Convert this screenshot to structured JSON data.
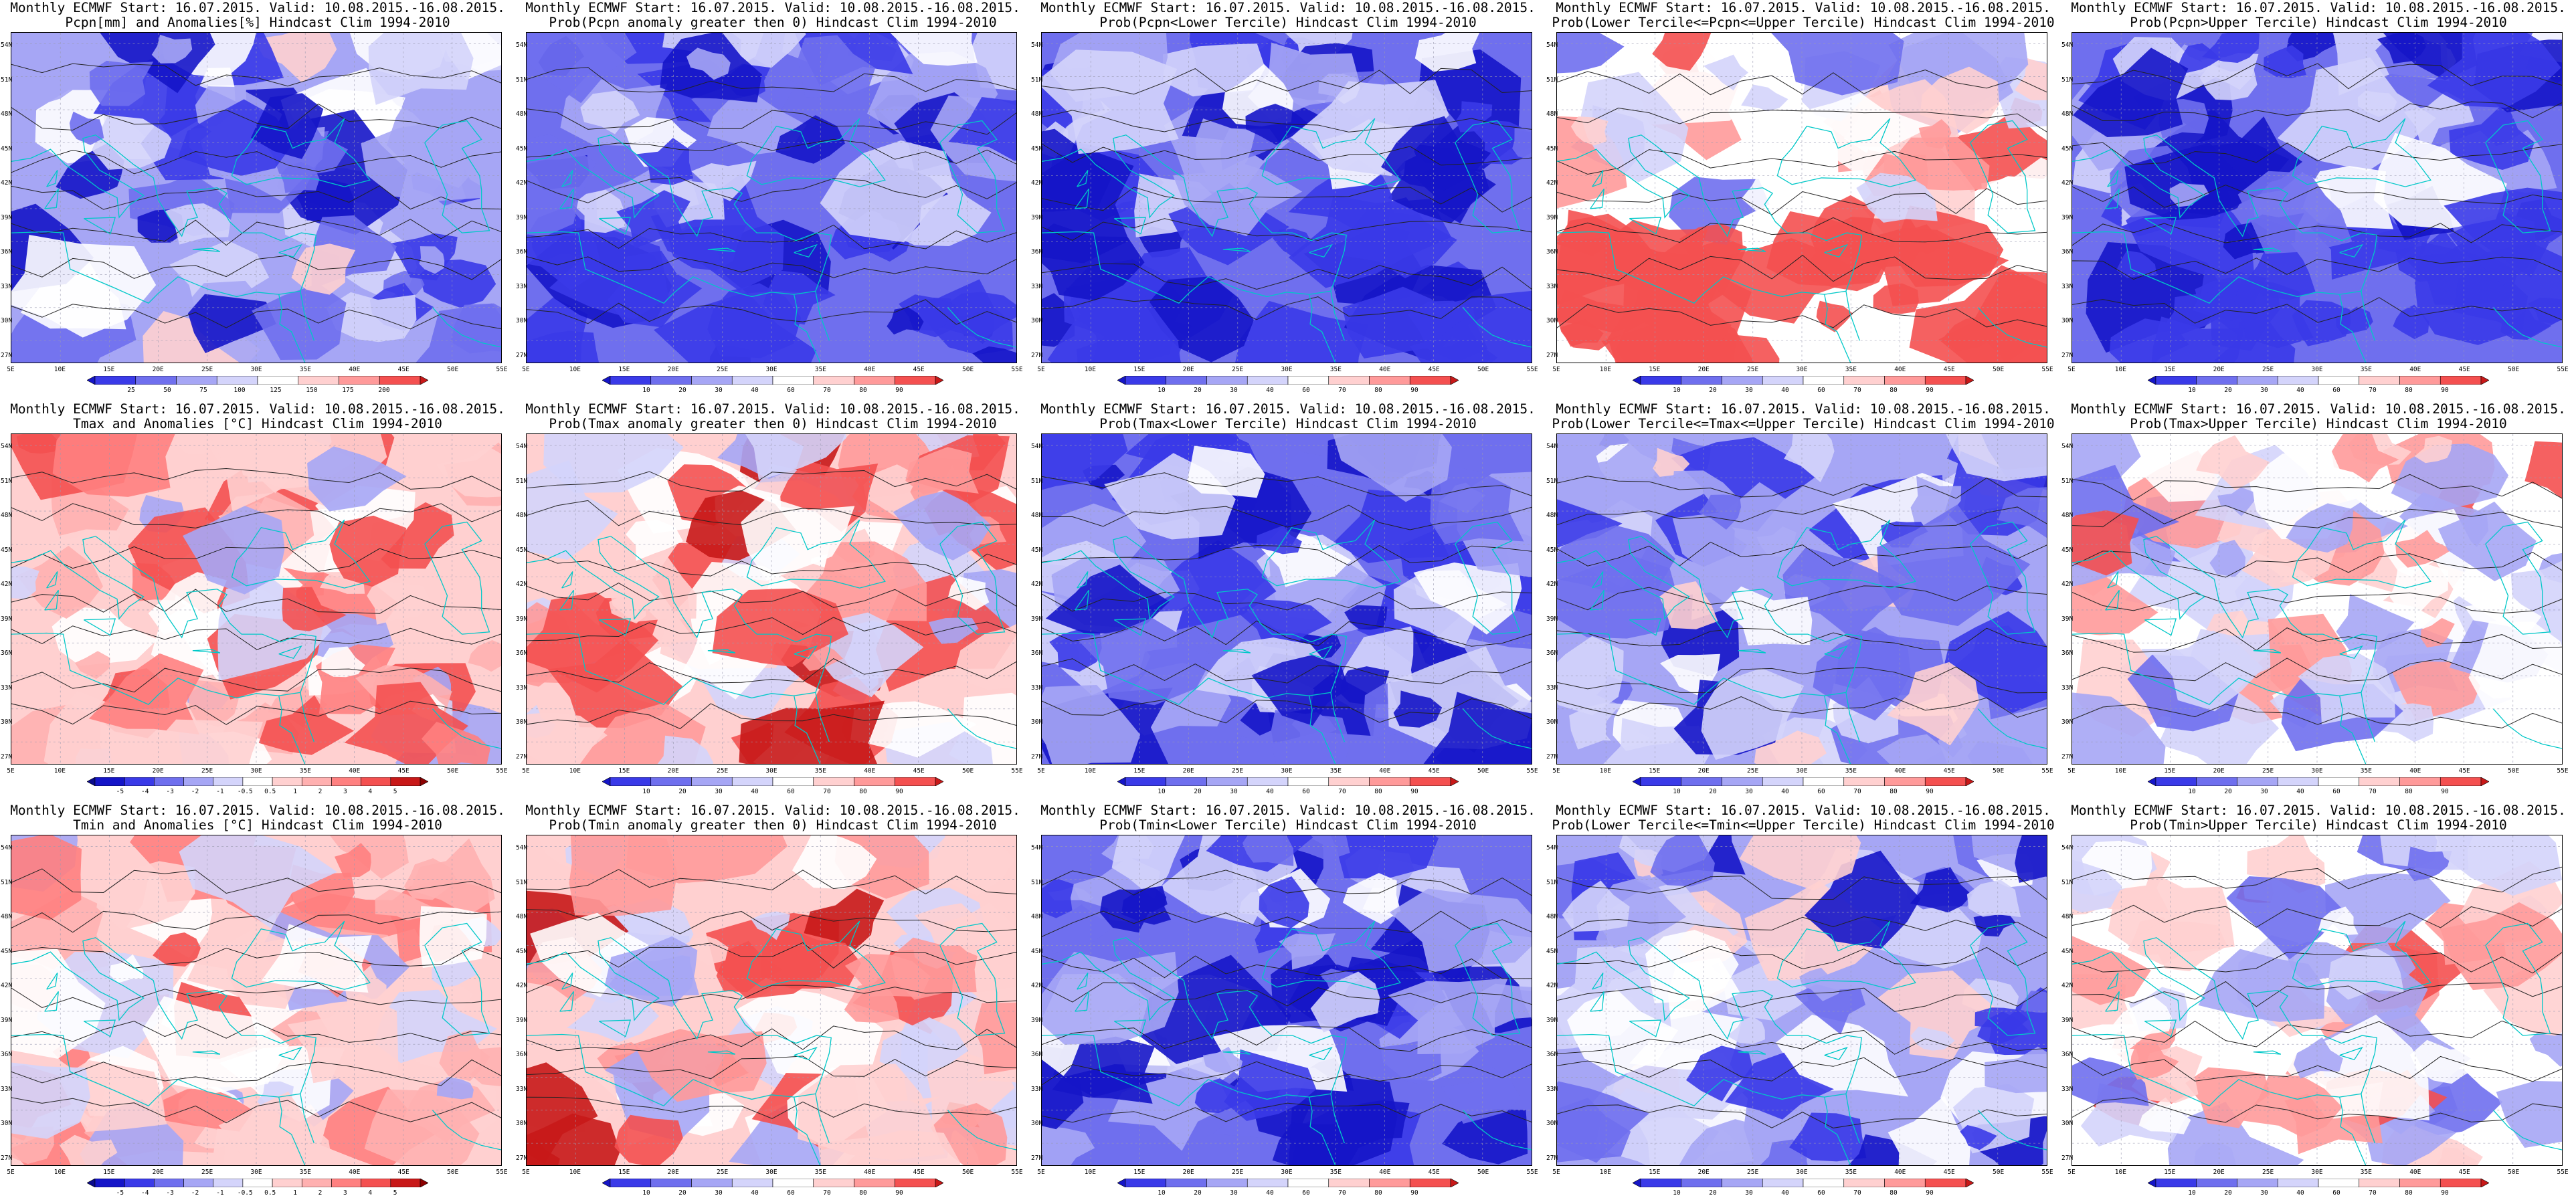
{
  "header_line": "Monthly ECMWF Start: 16.07.2015. Valid: 10.08.2015.-16.08.2015.",
  "lat_labels": [
    "54N",
    "51N",
    "48N",
    "45N",
    "42N",
    "39N",
    "36N",
    "33N",
    "30N",
    "27N"
  ],
  "lon_labels": [
    "5E",
    "10E",
    "15E",
    "20E",
    "25E",
    "30E",
    "35E",
    "40E",
    "45E",
    "50E",
    "55E"
  ],
  "colorbars": {
    "pcpn_anom": {
      "labels": [
        "25",
        "50",
        "75",
        "100",
        "125",
        "150",
        "175",
        "200"
      ],
      "colors": [
        "#1515c8",
        "#3a3ae8",
        "#6f6fee",
        "#a6a6f5",
        "#d4d4fb",
        "#ffffff",
        "#ffd0d0",
        "#ff9a9a",
        "#f45050",
        "#c81818"
      ]
    },
    "temp_anom": {
      "labels": [
        "-5",
        "-4",
        "-3",
        "-2",
        "-1",
        "-0.5",
        "0.5",
        "1",
        "2",
        "3",
        "4",
        "5"
      ],
      "colors": [
        "#0b0b8c",
        "#1515c8",
        "#3a3ae8",
        "#6f6fee",
        "#a6a6f5",
        "#d4d4fb",
        "#ffffff",
        "#ffd0d0",
        "#ffb0b0",
        "#ff8080",
        "#f45050",
        "#c81818",
        "#8b0000"
      ]
    },
    "prob": {
      "labels": [
        "10",
        "20",
        "30",
        "40",
        "60",
        "70",
        "80",
        "90"
      ],
      "colors": [
        "#1515c8",
        "#3a3ae8",
        "#6f6fee",
        "#a6a6f5",
        "#d4d4fb",
        "#ffffff",
        "#ffd0d0",
        "#ff9a9a",
        "#f45050",
        "#c81818"
      ]
    }
  },
  "panels": [
    {
      "id": "pcpn-anomalies",
      "subtitle": "Pcpn[mm] and Anomalies[%] Hindcast Clim 1994-2010",
      "colorbar": "pcpn_anom",
      "base": 0.3,
      "seed": 11
    },
    {
      "id": "pcpn-prob-gt0",
      "subtitle": "Prob(Pcpn anomaly greater then 0) Hindcast Clim 1994-2010",
      "colorbar": "prob",
      "base": 0.22,
      "seed": 23
    },
    {
      "id": "pcpn-prob-lower",
      "subtitle": "Prob(Pcpn<Lower Tercile) Hindcast Clim 1994-2010",
      "colorbar": "prob",
      "base": 0.2,
      "seed": 37
    },
    {
      "id": "pcpn-prob-middle",
      "subtitle": "Prob(Lower Tercile<=Pcpn<=Upper Tercile) Hindcast Clim 1994-2010",
      "colorbar": "prob",
      "base": 0.6,
      "seed": 41
    },
    {
      "id": "pcpn-prob-upper",
      "subtitle": "Prob(Pcpn>Upper Tercile) Hindcast Clim 1994-2010",
      "colorbar": "prob",
      "base": 0.25,
      "seed": 53
    },
    {
      "id": "tmax-anomalies",
      "subtitle": "Tmax and Anomalies [°C] Hindcast Clim 1994-2010",
      "colorbar": "temp_anom",
      "base": 0.62,
      "seed": 61
    },
    {
      "id": "tmax-prob-gt0",
      "subtitle": "Prob(Tmax anomaly greater then 0) Hindcast Clim 1994-2010",
      "colorbar": "prob",
      "base": 0.68,
      "seed": 71
    },
    {
      "id": "tmax-prob-lower",
      "subtitle": "Prob(Tmax<Lower Tercile) Hindcast Clim 1994-2010",
      "colorbar": "prob",
      "base": 0.22,
      "seed": 83
    },
    {
      "id": "tmax-prob-middle",
      "subtitle": "Prob(Lower Tercile<=Tmax<=Upper Tercile) Hindcast Clim 1994-2010",
      "colorbar": "prob",
      "base": 0.3,
      "seed": 97
    },
    {
      "id": "tmax-prob-upper",
      "subtitle": "Prob(Tmax>Upper Tercile) Hindcast Clim 1994-2010",
      "colorbar": "prob",
      "base": 0.52,
      "seed": 101
    },
    {
      "id": "tmin-anomalies",
      "subtitle": "Tmin and Anomalies [°C] Hindcast Clim 1994-2010",
      "colorbar": "temp_anom",
      "base": 0.58,
      "seed": 113
    },
    {
      "id": "tmin-prob-gt0",
      "subtitle": "Prob(Tmin anomaly greater then 0) Hindcast Clim 1994-2010",
      "colorbar": "prob",
      "base": 0.66,
      "seed": 127
    },
    {
      "id": "tmin-prob-lower",
      "subtitle": "Prob(Tmin<Lower Tercile) Hindcast Clim 1994-2010",
      "colorbar": "prob",
      "base": 0.2,
      "seed": 131
    },
    {
      "id": "tmin-prob-middle",
      "subtitle": "Prob(Lower Tercile<=Tmin<=Upper Tercile) Hindcast Clim 1994-2010",
      "colorbar": "prob",
      "base": 0.3,
      "seed": 139
    },
    {
      "id": "tmin-prob-upper",
      "subtitle": "Prob(Tmin>Upper Tercile) Hindcast Clim 1994-2010",
      "colorbar": "prob",
      "base": 0.5,
      "seed": 151
    }
  ]
}
